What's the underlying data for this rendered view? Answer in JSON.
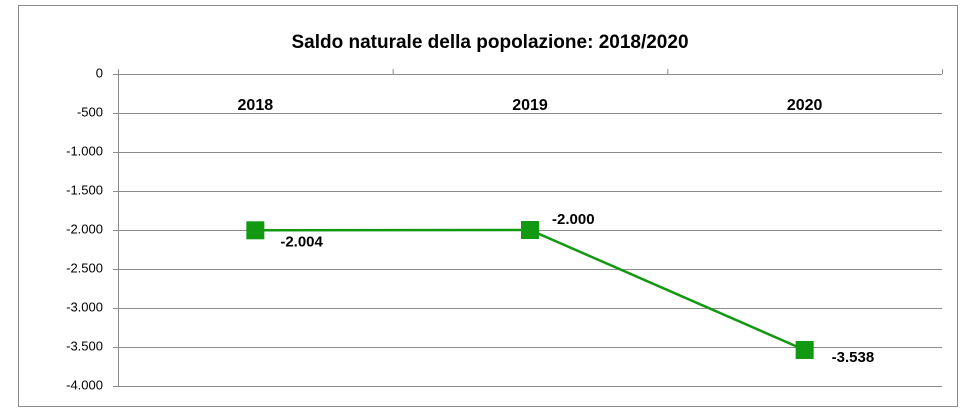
{
  "chart_data": {
    "type": "line",
    "title": "Saldo naturale della popolazione: 2018/2020",
    "categories": [
      "2018",
      "2019",
      "2020"
    ],
    "series": [
      {
        "name": "Saldo naturale",
        "color": "#119911",
        "values": [
          -2004,
          -2000,
          -3538
        ],
        "value_labels": [
          "-2.004",
          "-2.000",
          "-3.538"
        ]
      }
    ],
    "ylim": [
      -4000,
      0
    ],
    "yticks": [
      0,
      -500,
      {
        "value": -1000,
        "label": "-1.000"
      },
      {
        "value": -1500,
        "label": "-1.500"
      },
      {
        "value": -2000,
        "label": "-2.000"
      },
      {
        "value": -2500,
        "label": "-2.500"
      },
      {
        "value": -3000,
        "label": "-3.000"
      },
      {
        "value": -3500,
        "label": "-3.500"
      },
      {
        "value": -4000,
        "label": "-4.000"
      }
    ],
    "grid": true
  }
}
